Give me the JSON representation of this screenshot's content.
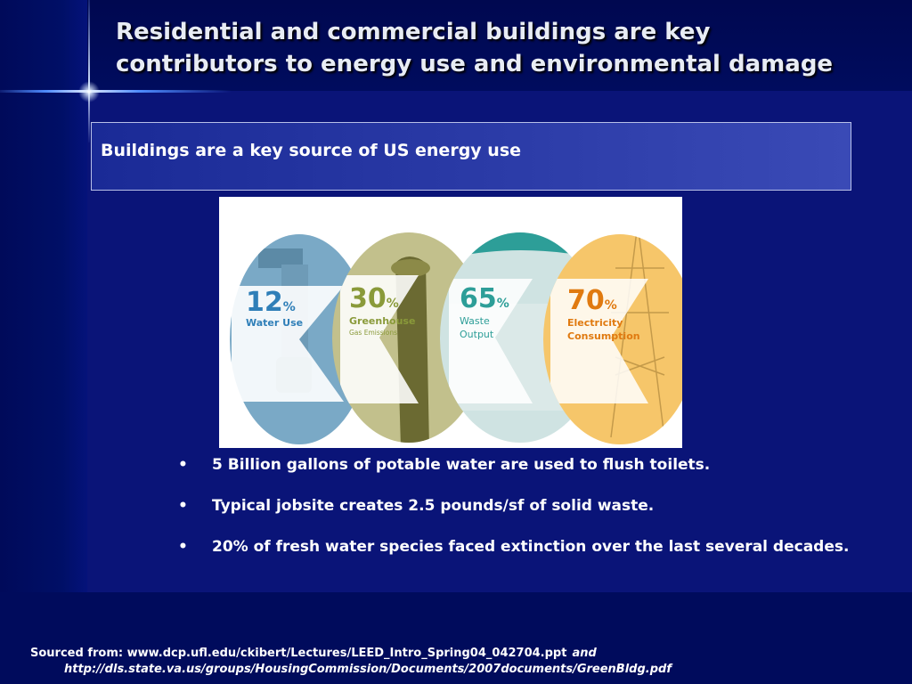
{
  "slide": {
    "title_line1": "Residential and commercial buildings are key",
    "title_line2": "contributors to energy use and environmental damage",
    "subtitle": "Buildings are a key source of US energy use"
  },
  "infographic": {
    "stats": [
      {
        "value": "12",
        "unit": "%",
        "label1": "Water Use",
        "label2": "",
        "color": "#2f7fb8"
      },
      {
        "value": "30",
        "unit": "%",
        "label1": "Greenhouse",
        "label2": "Gas Emissions",
        "color": "#8a9a3a"
      },
      {
        "value": "65",
        "unit": "%",
        "label1": "Waste",
        "label2": "Output",
        "color": "#2d9e98"
      },
      {
        "value": "70",
        "unit": "%",
        "label1": "Electricity",
        "label2": "Consumption",
        "color": "#e07a10"
      }
    ]
  },
  "bullets": [
    {
      "symbol": "•",
      "text": "5 Billion gallons of potable water are used to flush toilets."
    },
    {
      "symbol": "•",
      "text": "Typical jobsite creates 2.5 pounds/sf of solid waste."
    },
    {
      "symbol": "•",
      "text": "20% of fresh water species faced extinction over the last several decades."
    }
  ],
  "source": {
    "prefix": "Sourced from: www.dcp.ufl.edu/ckibert/Lectures/LEED_Intro_Spring04_042704.ppt",
    "conjunction": "and",
    "url2": "http://dls.state.va.us/groups/HousingCommission/Documents/2007documents/GreenBldg.pdf"
  },
  "colors": {
    "background": "#0a1478",
    "band": "#000b5c",
    "subtitle_box": "#2a3aa6",
    "title_text": "#e8ecf4"
  }
}
